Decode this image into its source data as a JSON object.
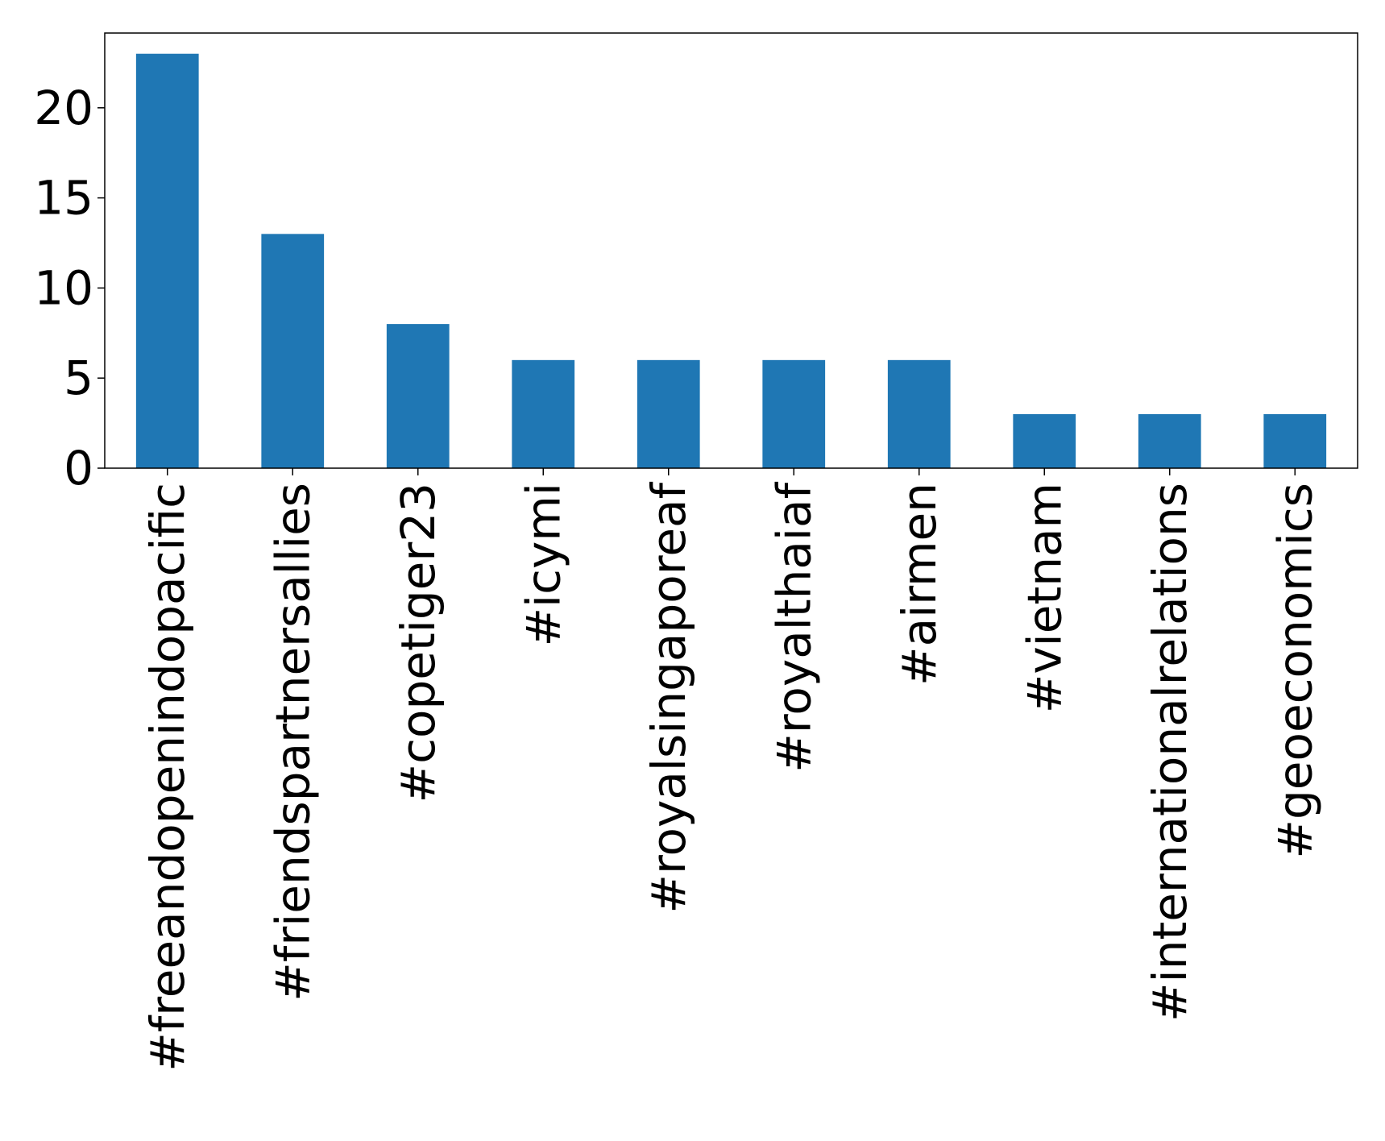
{
  "chart_data": {
    "type": "bar",
    "title": "",
    "xlabel": "",
    "ylabel": "",
    "categories": [
      "#freeandopenindopacific",
      "#friendspartnersallies",
      "#copetiger23",
      "#icymi",
      "#royalsingaporeaf",
      "#royalthaiaf",
      "#airmen",
      "#vietnam",
      "#internationalrelations",
      "#geoeconomics"
    ],
    "values": [
      23,
      13,
      8,
      6,
      6,
      6,
      6,
      3,
      3,
      3
    ],
    "ylim": [
      0,
      24.15
    ],
    "yticks": [
      0,
      5,
      10,
      15,
      20
    ],
    "ytick_labels": [
      "0",
      "5",
      "10",
      "15",
      "20"
    ],
    "bar_color": "#1f77b4",
    "grid": false,
    "legend": "none"
  }
}
